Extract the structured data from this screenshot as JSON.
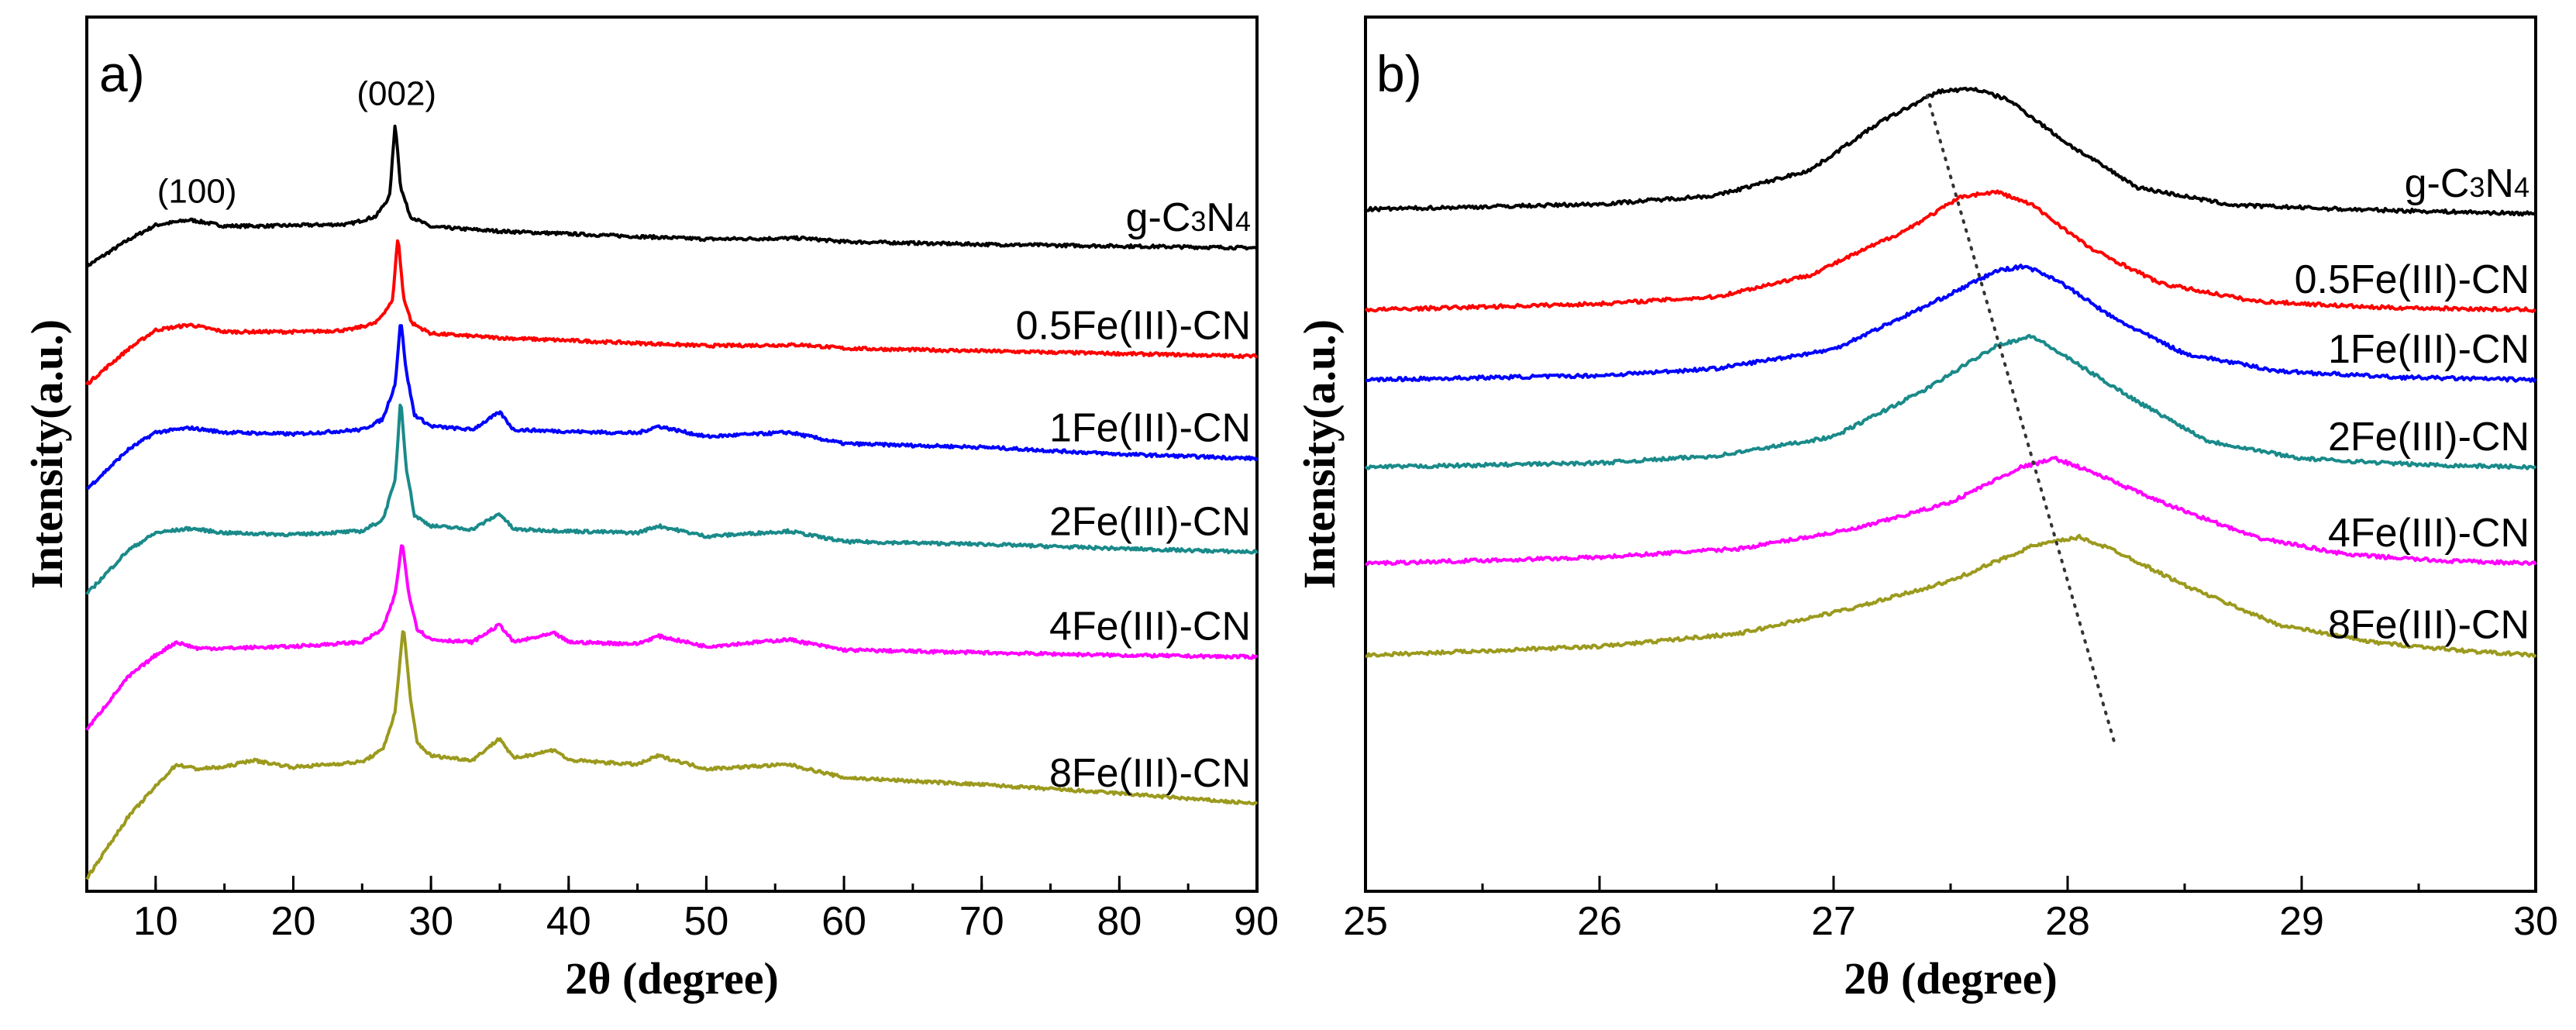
{
  "chart_data": [
    {
      "type": "line",
      "panel_label": "a)",
      "xlabel": "2θ (degree)",
      "ylabel": "Intensity(a.u.)",
      "xlim": [
        5,
        90
      ],
      "xticks": [
        10,
        20,
        30,
        40,
        50,
        60,
        70,
        80,
        90
      ],
      "yticks": [],
      "peak_labels": [
        {
          "text": "(100)",
          "x": 13
        },
        {
          "text": "(002)",
          "x": 27.5
        }
      ],
      "series": [
        {
          "name": "g-C3N4",
          "label_main": "g-C",
          "label_sub1": "3",
          "label_mid": "N",
          "label_sub2": "4",
          "color": "#000000",
          "x": [
            5,
            8,
            10,
            12.5,
            15,
            18,
            21,
            24,
            26,
            27.0,
            27.4,
            27.8,
            28.5,
            30,
            35,
            40,
            45,
            50,
            57,
            60,
            70,
            80,
            90
          ],
          "y": [
            7.15,
            7.45,
            7.62,
            7.68,
            7.61,
            7.61,
            7.62,
            7.63,
            7.72,
            7.95,
            8.8,
            8.05,
            7.72,
            7.6,
            7.55,
            7.52,
            7.49,
            7.46,
            7.47,
            7.43,
            7.4,
            7.38,
            7.36
          ]
        },
        {
          "name": "0.5Fe(III)-CN",
          "color": "#ff0000",
          "x": [
            5,
            8,
            10,
            12.5,
            15,
            18,
            21,
            24,
            26,
            27.2,
            27.6,
            28.0,
            28.6,
            30,
            35,
            40,
            45,
            50,
            57,
            60,
            70,
            80,
            90
          ],
          "y": [
            5.8,
            6.2,
            6.42,
            6.48,
            6.4,
            6.4,
            6.4,
            6.42,
            6.5,
            6.75,
            7.5,
            6.8,
            6.5,
            6.38,
            6.33,
            6.3,
            6.27,
            6.24,
            6.25,
            6.21,
            6.18,
            6.15,
            6.12
          ]
        },
        {
          "name": "1Fe(III)-CN",
          "color": "#0000ff",
          "x": [
            5,
            8,
            10,
            12.5,
            15,
            20,
            25,
            26.5,
            27.4,
            27.8,
            28.2,
            28.8,
            30,
            33,
            35,
            36,
            40,
            45,
            46.5,
            50,
            56,
            60,
            70,
            80,
            90
          ],
          "y": [
            4.6,
            5.05,
            5.25,
            5.3,
            5.25,
            5.23,
            5.28,
            5.4,
            5.8,
            6.55,
            5.95,
            5.45,
            5.32,
            5.28,
            5.48,
            5.28,
            5.26,
            5.24,
            5.32,
            5.2,
            5.25,
            5.12,
            5.08,
            5.0,
            4.95
          ]
        },
        {
          "name": "2Fe(III)-CN",
          "color": "#1a8a8a",
          "x": [
            5,
            8,
            10,
            12.5,
            15,
            20,
            25,
            26.5,
            27.4,
            27.8,
            28.2,
            28.8,
            30,
            33,
            35,
            36,
            40,
            45,
            46.5,
            50,
            56,
            60,
            70,
            80,
            90
          ],
          "y": [
            3.4,
            3.9,
            4.1,
            4.15,
            4.1,
            4.08,
            4.12,
            4.25,
            4.7,
            5.65,
            4.85,
            4.3,
            4.18,
            4.14,
            4.32,
            4.14,
            4.12,
            4.1,
            4.18,
            4.06,
            4.12,
            4.0,
            3.97,
            3.92,
            3.88
          ]
        },
        {
          "name": "4Fe(III)-CN",
          "color": "#ff00ff",
          "x": [
            5,
            8,
            10,
            11.5,
            13,
            15,
            20,
            25,
            26.5,
            27.4,
            27.9,
            28.4,
            29,
            30,
            33,
            35,
            36,
            39,
            40,
            45,
            46.5,
            50,
            56,
            60,
            70,
            80,
            90
          ],
          "y": [
            1.85,
            2.45,
            2.7,
            2.85,
            2.78,
            2.78,
            2.8,
            2.85,
            3.0,
            3.4,
            4.0,
            3.4,
            3.0,
            2.88,
            2.85,
            3.05,
            2.85,
            2.95,
            2.85,
            2.83,
            2.92,
            2.8,
            2.88,
            2.76,
            2.73,
            2.7,
            2.68
          ]
        },
        {
          "name": "8Fe(III)-CN",
          "color": "#9b9a1e",
          "x": [
            5,
            8,
            10,
            11.5,
            13,
            15,
            17,
            20,
            25,
            26.5,
            27.4,
            28.0,
            28.5,
            29,
            30,
            33,
            35,
            36,
            39,
            40,
            45,
            46.5,
            50,
            56,
            60,
            70,
            80,
            90
          ],
          "y": [
            0.15,
            0.85,
            1.2,
            1.45,
            1.4,
            1.42,
            1.5,
            1.42,
            1.48,
            1.62,
            2.05,
            3.05,
            2.2,
            1.7,
            1.55,
            1.5,
            1.75,
            1.52,
            1.62,
            1.5,
            1.45,
            1.55,
            1.4,
            1.45,
            1.3,
            1.22,
            1.12,
            1.0
          ]
        }
      ],
      "ylim": [
        0,
        10
      ]
    },
    {
      "type": "line",
      "panel_label": "b)",
      "xlabel": "2θ (degree)",
      "ylabel": "Intensity(a.u.)",
      "xlim": [
        25,
        30
      ],
      "xticks": [
        25,
        26,
        27,
        28,
        29,
        30
      ],
      "yticks": [],
      "ylim": [
        0,
        10
      ],
      "guide_line": {
        "x": [
          27.4,
          28.2
        ],
        "y": [
          9.1,
          1.7
        ],
        "style": "dotted"
      },
      "series": [
        {
          "name": "g-C3N4",
          "label_main": "g-C",
          "label_sub1": "3",
          "label_mid": "N",
          "label_sub2": "4",
          "color": "#000000",
          "x": [
            25,
            26,
            26.5,
            26.9,
            27.2,
            27.45,
            27.6,
            27.75,
            28.0,
            28.3,
            28.7,
            29.2,
            30
          ],
          "y": [
            7.8,
            7.86,
            7.96,
            8.25,
            8.8,
            9.15,
            9.18,
            9.05,
            8.55,
            8.05,
            7.85,
            7.8,
            7.75
          ]
        },
        {
          "name": "0.5Fe(III)-CN",
          "color": "#ff0000",
          "x": [
            25,
            26,
            26.5,
            26.9,
            27.3,
            27.55,
            27.7,
            27.85,
            28.1,
            28.4,
            28.8,
            29.3,
            30
          ],
          "y": [
            6.65,
            6.72,
            6.8,
            7.05,
            7.55,
            7.95,
            8.0,
            7.85,
            7.35,
            6.95,
            6.75,
            6.68,
            6.65
          ]
        },
        {
          "name": "1Fe(III)-CN",
          "color": "#0000ff",
          "x": [
            25,
            26,
            26.5,
            27.0,
            27.4,
            27.7,
            27.82,
            27.95,
            28.2,
            28.5,
            28.9,
            29.4,
            30
          ],
          "y": [
            5.85,
            5.9,
            5.98,
            6.2,
            6.7,
            7.1,
            7.15,
            7.0,
            6.55,
            6.15,
            5.95,
            5.88,
            5.85
          ]
        },
        {
          "name": "2Fe(III)-CN",
          "color": "#1a8a8a",
          "x": [
            25,
            26,
            26.5,
            27.0,
            27.4,
            27.7,
            27.85,
            28.0,
            28.3,
            28.6,
            29.0,
            29.5,
            30
          ],
          "y": [
            4.85,
            4.9,
            4.98,
            5.2,
            5.75,
            6.25,
            6.35,
            6.1,
            5.6,
            5.15,
            4.95,
            4.88,
            4.85
          ]
        },
        {
          "name": "4Fe(III)-CN",
          "color": "#ff00ff",
          "x": [
            25,
            26,
            26.6,
            27.1,
            27.5,
            27.8,
            27.95,
            28.1,
            28.4,
            28.8,
            29.2,
            29.6,
            30
          ],
          "y": [
            3.75,
            3.82,
            3.92,
            4.15,
            4.45,
            4.85,
            4.95,
            4.8,
            4.45,
            4.05,
            3.85,
            3.78,
            3.75
          ]
        },
        {
          "name": "8Fe(III)-CN",
          "color": "#9b9a1e",
          "x": [
            25,
            26,
            26.6,
            27.1,
            27.5,
            27.85,
            28.05,
            28.2,
            28.5,
            28.9,
            29.3,
            29.7,
            30
          ],
          "y": [
            2.7,
            2.8,
            2.95,
            3.25,
            3.55,
            3.95,
            4.05,
            3.9,
            3.5,
            3.05,
            2.85,
            2.75,
            2.7
          ]
        }
      ]
    }
  ]
}
